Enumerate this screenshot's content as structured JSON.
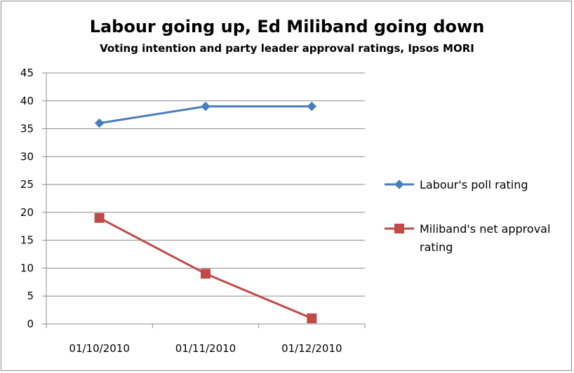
{
  "chart_data": {
    "type": "line",
    "title": "Labour going up, Ed Miliband going down",
    "subtitle": "Voting intention and party leader approval ratings, Ipsos MORI",
    "x": [
      "01/10/2010",
      "01/11/2010",
      "01/12/2010"
    ],
    "ylim": [
      0,
      45
    ],
    "yticks": [
      0,
      5,
      10,
      15,
      20,
      25,
      30,
      35,
      40,
      45
    ],
    "grid": true,
    "legend_position": "right",
    "series": [
      {
        "name": "Labour's poll rating",
        "values": [
          36,
          39,
          39
        ],
        "color": "#4a7ebb",
        "marker": "diamond"
      },
      {
        "name": "Miliband's net approval rating",
        "values": [
          19,
          9,
          1
        ],
        "color": "#be4b48",
        "marker": "square"
      }
    ]
  }
}
